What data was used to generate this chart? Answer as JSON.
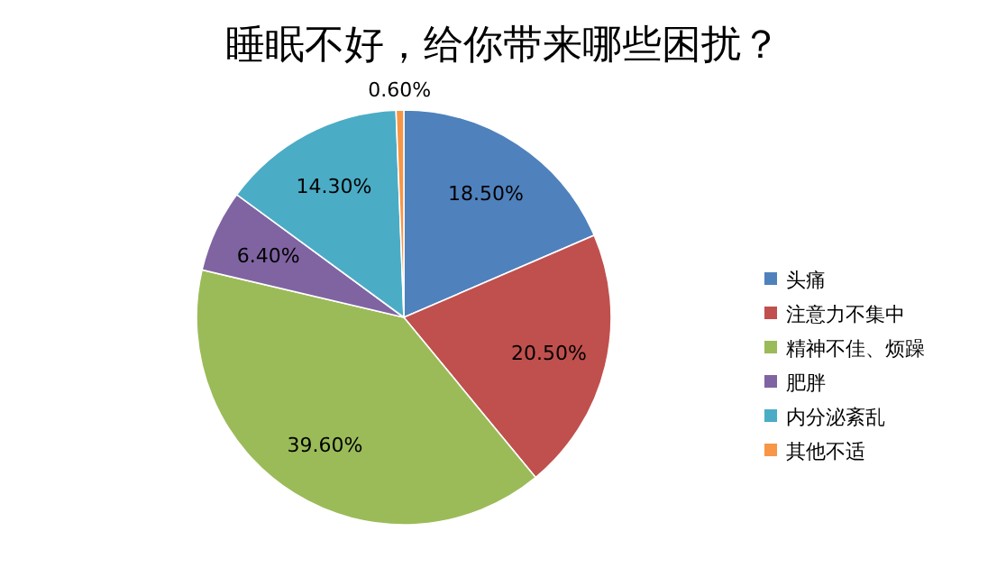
{
  "chart_data": {
    "type": "pie",
    "title": "睡眠不好，给你带来哪些困扰？",
    "categories": [
      "头痛",
      "注意力不集中",
      "精神不佳、烦躁",
      "肥胖",
      "内分泌紊乱",
      "其他不适"
    ],
    "values": [
      18.5,
      20.5,
      39.6,
      6.4,
      14.3,
      0.6
    ],
    "colors": [
      "#4f81bd",
      "#c0504d",
      "#9bbb59",
      "#8064a2",
      "#4bacc6",
      "#f79646"
    ],
    "value_labels": [
      "18.50%",
      "20.50%",
      "39.60%",
      "6.40%",
      "14.30%",
      "0.60%"
    ],
    "legend": "right"
  }
}
